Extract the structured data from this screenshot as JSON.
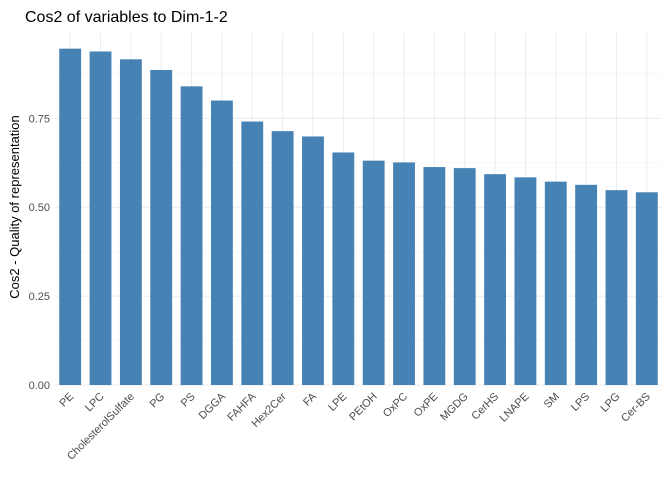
{
  "chart_data": {
    "type": "bar",
    "title": "Cos2 of variables to Dim-1-2",
    "xlabel": "",
    "ylabel": "Cos2 - Quality of representation",
    "categories": [
      "PE",
      "LPC",
      "CholesterolSulfate",
      "PG",
      "PS",
      "DGGA",
      "FAHFA",
      "Hex2Cer",
      "FA",
      "LPE",
      "PEtOH",
      "OxPC",
      "OxPE",
      "MGDG",
      "CerHS",
      "LNAPE",
      "SM",
      "LPS",
      "LPG",
      "Cer-BS"
    ],
    "values": [
      0.946,
      0.938,
      0.916,
      0.886,
      0.84,
      0.8,
      0.741,
      0.714,
      0.699,
      0.654,
      0.631,
      0.626,
      0.613,
      0.61,
      0.593,
      0.584,
      0.572,
      0.563,
      0.548,
      0.542
    ],
    "yticks": [
      0.0,
      0.25,
      0.5,
      0.75
    ],
    "ytick_labels": [
      "0.00",
      "0.25",
      "0.50",
      "0.75"
    ],
    "ylim": [
      0,
      0.99
    ],
    "bar_color": "#4682B4",
    "grid": true
  }
}
